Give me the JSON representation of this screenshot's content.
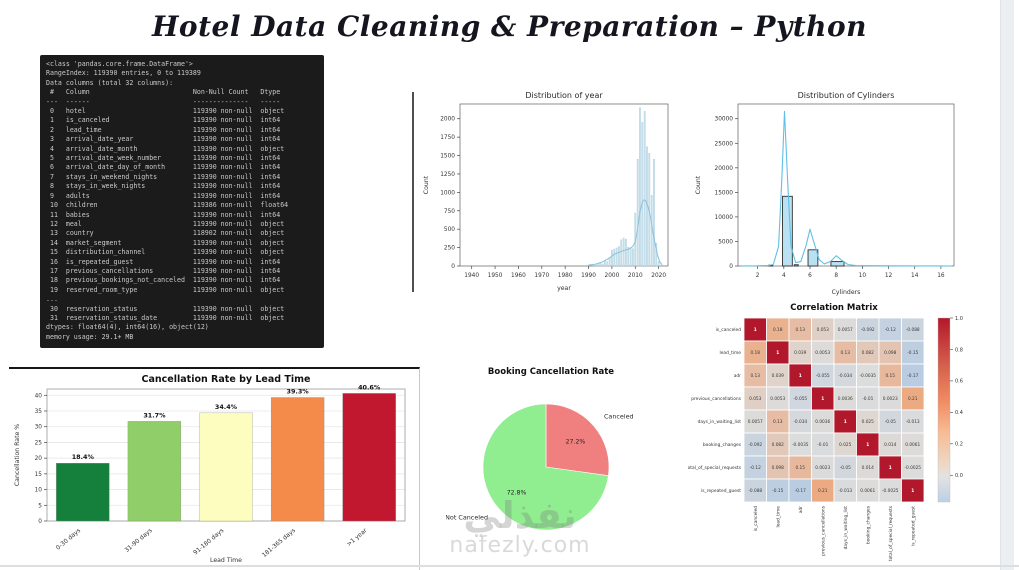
{
  "slide": {
    "title": "Hotel Data Cleaning & Preparation – Python"
  },
  "watermark": {
    "arabic": "نفذلي",
    "domain": "nafezly.com"
  },
  "terminal": {
    "lines": [
      "<class 'pandas.core.frame.DataFrame'>",
      "RangeIndex: 119390 entries, 0 to 119389",
      "Data columns (total 32 columns):",
      " #   Column                          Non-Null Count   Dtype  ",
      "---  ------                          --------------   -----  ",
      " 0   hotel                           119390 non-null  object ",
      " 1   is_canceled                     119390 non-null  int64  ",
      " 2   lead_time                       119390 non-null  int64  ",
      " 3   arrival_date_year               119390 non-null  int64  ",
      " 4   arrival_date_month              119390 non-null  object ",
      " 5   arrival_date_week_number        119390 non-null  int64  ",
      " 6   arrival_date_day_of_month       119390 non-null  int64  ",
      " 7   stays_in_weekend_nights         119390 non-null  int64  ",
      " 8   stays_in_week_nights            119390 non-null  int64  ",
      " 9   adults                          119390 non-null  int64  ",
      " 10  children                        119386 non-null  float64",
      " 11  babies                          119390 non-null  int64  ",
      " 12  meal                            119390 non-null  object ",
      " 13  country                         118902 non-null  object ",
      " 14  market_segment                  119390 non-null  object ",
      " 15  distribution_channel            119390 non-null  object ",
      " 16  is_repeated_guest               119390 non-null  int64  ",
      " 17  previous_cancellations          119390 non-null  int64  ",
      " 18  previous_bookings_not_canceled  119390 non-null  int64  ",
      " 19  reserved_room_type              119390 non-null  object ",
      "...",
      " 30  reservation_status              119390 non-null  object ",
      " 31  reservation_status_date         119390 non-null  object ",
      "dtypes: float64(4), int64(16), object(12)",
      "memory usage: 29.1+ MB"
    ]
  },
  "chart_data": [
    {
      "id": "year_hist",
      "type": "bar",
      "variant": "histogram-kde",
      "title": "Distribution of year",
      "xlabel": "year",
      "ylabel": "Count",
      "xlim": [
        1935,
        2024
      ],
      "ylim": [
        0,
        2200
      ],
      "xticks": [
        1940,
        1950,
        1960,
        1970,
        1980,
        1990,
        2000,
        2010,
        2020
      ],
      "yticks": [
        0,
        250,
        500,
        750,
        1000,
        1250,
        1500,
        1750,
        2000
      ],
      "bar_width": 0.5,
      "bar_color": "#cfe4ee",
      "bar_edge": "#aecfdf",
      "line_color": "#8cc5dc",
      "bins": [
        {
          "x": 1993,
          "y": 10
        },
        {
          "x": 1994,
          "y": 20
        },
        {
          "x": 1995,
          "y": 35
        },
        {
          "x": 1996,
          "y": 30
        },
        {
          "x": 1997,
          "y": 70
        },
        {
          "x": 1998,
          "y": 60
        },
        {
          "x": 1999,
          "y": 110
        },
        {
          "x": 2000,
          "y": 215
        },
        {
          "x": 2001,
          "y": 230
        },
        {
          "x": 2002,
          "y": 245
        },
        {
          "x": 2003,
          "y": 265
        },
        {
          "x": 2004,
          "y": 355
        },
        {
          "x": 2005,
          "y": 380
        },
        {
          "x": 2006,
          "y": 365
        },
        {
          "x": 2007,
          "y": 255
        },
        {
          "x": 2008,
          "y": 245
        },
        {
          "x": 2009,
          "y": 235
        },
        {
          "x": 2010,
          "y": 720
        },
        {
          "x": 2011,
          "y": 1450
        },
        {
          "x": 2012,
          "y": 2150
        },
        {
          "x": 2013,
          "y": 1950
        },
        {
          "x": 2014,
          "y": 2100
        },
        {
          "x": 2015,
          "y": 1620
        },
        {
          "x": 2016,
          "y": 1530
        },
        {
          "x": 2017,
          "y": 960
        },
        {
          "x": 2018,
          "y": 1450
        },
        {
          "x": 2019,
          "y": 310
        },
        {
          "x": 2020,
          "y": 60
        }
      ],
      "kde": [
        [
          1990,
          12
        ],
        [
          1993,
          25
        ],
        [
          1996,
          55
        ],
        [
          1999,
          110
        ],
        [
          2001,
          160
        ],
        [
          2003,
          185
        ],
        [
          2005,
          210
        ],
        [
          2007,
          228
        ],
        [
          2008,
          245
        ],
        [
          2009,
          268
        ],
        [
          2010,
          330
        ],
        [
          2011,
          500
        ],
        [
          2012,
          740
        ],
        [
          2013,
          870
        ],
        [
          2013.8,
          900
        ],
        [
          2014.6,
          880
        ],
        [
          2015.5,
          800
        ],
        [
          2016.5,
          665
        ],
        [
          2017.5,
          480
        ],
        [
          2018.5,
          300
        ],
        [
          2019.5,
          150
        ],
        [
          2020.5,
          55
        ],
        [
          2021.5,
          15
        ]
      ]
    },
    {
      "id": "cyl_hist",
      "type": "bar",
      "variant": "histogram-kde",
      "title": "Distribution of Cylinders",
      "xlabel": "Cylinders",
      "ylabel": "Count",
      "xlim": [
        0.5,
        17
      ],
      "ylim": [
        0,
        33000
      ],
      "xticks": [
        2,
        4,
        6,
        8,
        10,
        12,
        14,
        16
      ],
      "yticks": [
        0,
        5000,
        10000,
        15000,
        20000,
        25000,
        30000
      ],
      "bar_color": "#b9e1f1",
      "bar_edge": "#2f2f2f",
      "bar_edge_width": 0.9,
      "line_color": "#5fc0e4",
      "bins": [
        {
          "x0": 2.85,
          "x1": 3.15,
          "y": 180
        },
        {
          "x0": 3.9,
          "x1": 4.65,
          "y": 14200
        },
        {
          "x0": 4.8,
          "x1": 5.1,
          "y": 260
        },
        {
          "x0": 5.85,
          "x1": 6.6,
          "y": 3300
        },
        {
          "x0": 7.6,
          "x1": 8.6,
          "y": 900
        }
      ],
      "kde": [
        [
          0.8,
          30
        ],
        [
          2,
          40
        ],
        [
          2.8,
          120
        ],
        [
          3.2,
          300
        ],
        [
          3.6,
          4000
        ],
        [
          3.85,
          18000
        ],
        [
          4.05,
          31500
        ],
        [
          4.3,
          17000
        ],
        [
          4.55,
          4000
        ],
        [
          4.9,
          700
        ],
        [
          5.3,
          900
        ],
        [
          5.7,
          4200
        ],
        [
          6,
          7500
        ],
        [
          6.3,
          4800
        ],
        [
          6.7,
          1300
        ],
        [
          7.1,
          400
        ],
        [
          7.6,
          1000
        ],
        [
          8,
          2100
        ],
        [
          8.45,
          1100
        ],
        [
          8.9,
          300
        ],
        [
          9.5,
          100
        ],
        [
          10.5,
          60
        ],
        [
          12,
          40
        ],
        [
          14,
          30
        ],
        [
          16,
          20
        ],
        [
          16.8,
          10
        ]
      ]
    },
    {
      "id": "lead_bar",
      "type": "bar",
      "title": "Cancellation Rate by Lead Time",
      "xlabel": "Lead Time",
      "ylabel": "Cancellation Rate %",
      "categories": [
        "0-30 days",
        "31-90 days",
        "91-180 days",
        "181-365 days",
        ">1 year"
      ],
      "values": [
        18.4,
        31.7,
        34.4,
        39.3,
        40.6
      ],
      "value_labels": [
        "18.4%",
        "31.7%",
        "34.4%",
        "39.3%",
        "40.6%"
      ],
      "colors": [
        "#15803c",
        "#8fce68",
        "#fdfdbf",
        "#f58b4a",
        "#c2182f"
      ],
      "ylim": [
        0,
        42
      ],
      "yticks": [
        0,
        5,
        10,
        15,
        20,
        25,
        30,
        35,
        40
      ],
      "grid": true
    },
    {
      "id": "cancel_pie",
      "type": "pie",
      "title": "Booking Cancellation Rate",
      "start_angle": 90,
      "clockwise": true,
      "slices": [
        {
          "label": "Canceled",
          "value": 27.2,
          "pct_label": "27.2%",
          "color": "#f08080"
        },
        {
          "label": "Not Canceled",
          "value": 72.8,
          "pct_label": "72.8%",
          "color": "#90ee90"
        }
      ]
    },
    {
      "id": "corr_heat",
      "type": "heatmap",
      "title": "Correlation Matrix",
      "labels": [
        "is_canceled",
        "lead_time",
        "adr",
        "previous_cancellations",
        "days_in_waiting_list",
        "booking_changes",
        "total_of_special_requests",
        "is_repeated_guest"
      ],
      "matrix": [
        [
          1,
          0.18,
          0.13,
          0.053,
          0.0057,
          -0.092,
          -0.12,
          -0.088
        ],
        [
          0.18,
          1,
          0.039,
          0.0053,
          0.13,
          0.082,
          0.098,
          -0.15
        ],
        [
          0.13,
          0.039,
          1,
          -0.055,
          -0.034,
          -0.0035,
          0.15,
          -0.17
        ],
        [
          0.053,
          0.0053,
          -0.055,
          1,
          0.0036,
          -0.01,
          0.0023,
          0.21
        ],
        [
          0.0057,
          0.13,
          -0.034,
          0.0036,
          1,
          0.025,
          -0.05,
          -0.013
        ],
        [
          -0.092,
          0.082,
          -0.0035,
          -0.01,
          0.025,
          1,
          0.014,
          0.0061
        ],
        [
          -0.12,
          0.098,
          0.15,
          0.0023,
          -0.05,
          0.014,
          1,
          -0.0025
        ],
        [
          -0.088,
          -0.15,
          -0.17,
          0.21,
          -0.013,
          0.0061,
          -0.0025,
          1
        ]
      ],
      "diag_color": "#b2182b",
      "vmin": -0.17,
      "vmax": 1.0,
      "colorbar_ticks": [
        "1.0",
        "0.8",
        "0.6",
        "0.4",
        "0.2",
        "0.0"
      ]
    }
  ]
}
